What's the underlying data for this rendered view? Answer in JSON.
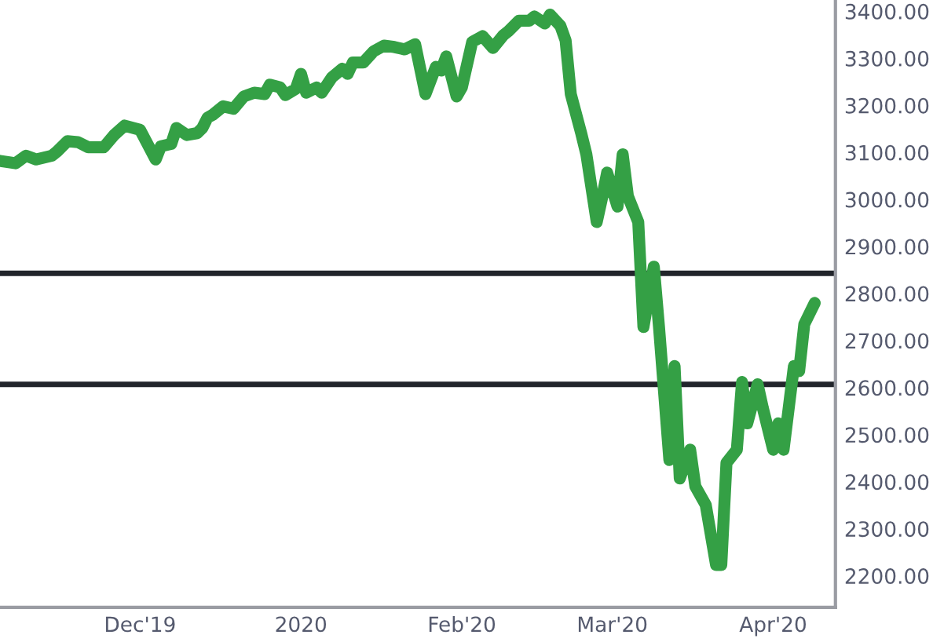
{
  "chart_data": {
    "type": "line",
    "x": [
      "2019-11-04",
      "2019-11-07",
      "2019-11-09",
      "2019-11-11",
      "2019-11-14",
      "2019-11-15",
      "2019-11-17",
      "2019-11-19",
      "2019-11-21",
      "2019-11-24",
      "2019-11-26",
      "2019-11-28",
      "2019-12-01",
      "2019-12-04",
      "2019-12-05",
      "2019-12-07",
      "2019-12-08",
      "2019-12-10",
      "2019-12-12",
      "2019-12-13",
      "2019-12-14",
      "2019-12-15",
      "2019-12-17",
      "2019-12-19",
      "2019-12-21",
      "2019-12-23",
      "2019-12-25",
      "2019-12-26",
      "2019-12-28",
      "2019-12-29",
      "2019-12-31",
      "2020-01-01",
      "2020-01-02",
      "2020-01-04",
      "2020-01-05",
      "2020-01-07",
      "2020-01-09",
      "2020-01-10",
      "2020-01-11",
      "2020-01-13",
      "2020-01-15",
      "2020-01-17",
      "2020-01-19",
      "2020-01-21",
      "2020-01-23",
      "2020-01-25",
      "2020-01-27",
      "2020-01-28",
      "2020-01-29",
      "2020-01-31",
      "2020-02-01",
      "2020-02-03",
      "2020-02-05",
      "2020-02-07",
      "2020-02-09",
      "2020-02-10",
      "2020-02-12",
      "2020-02-14",
      "2020-02-15",
      "2020-02-17",
      "2020-02-18",
      "2020-02-20",
      "2020-02-21",
      "2020-02-22",
      "2020-02-24",
      "2020-02-25",
      "2020-02-27",
      "2020-02-28",
      "2020-02-29",
      "2020-03-02",
      "2020-03-03",
      "2020-03-04",
      "2020-03-06",
      "2020-03-07",
      "2020-03-09",
      "2020-03-10",
      "2020-03-12",
      "2020-03-13",
      "2020-03-14",
      "2020-03-16",
      "2020-03-17",
      "2020-03-19",
      "2020-03-21",
      "2020-03-22",
      "2020-03-23",
      "2020-03-25",
      "2020-03-26",
      "2020-03-27",
      "2020-03-29",
      "2020-03-30",
      "2020-04-01",
      "2020-04-02",
      "2020-04-03",
      "2020-04-05",
      "2020-04-06",
      "2020-04-07",
      "2020-04-09"
    ],
    "series": [
      {
        "color": "#34a045",
        "values": [
          3082,
          3077,
          3093,
          3085,
          3093,
          3102,
          3124,
          3122,
          3111,
          3111,
          3137,
          3157,
          3148,
          3085,
          3113,
          3118,
          3152,
          3137,
          3141,
          3152,
          3174,
          3180,
          3198,
          3193,
          3219,
          3227,
          3224,
          3244,
          3238,
          3222,
          3235,
          3267,
          3227,
          3238,
          3227,
          3260,
          3278,
          3267,
          3291,
          3291,
          3315,
          3327,
          3324,
          3319,
          3330,
          3224,
          3282,
          3274,
          3304,
          3219,
          3238,
          3335,
          3347,
          3322,
          3349,
          3358,
          3380,
          3380,
          3389,
          3374,
          3393,
          3369,
          3338,
          3224,
          3141,
          3096,
          2952,
          3002,
          3057,
          2985,
          3096,
          3007,
          2952,
          2729,
          2857,
          2729,
          2446,
          2646,
          2407,
          2468,
          2390,
          2351,
          2223,
          2223,
          2440,
          2468,
          2612,
          2524,
          2607,
          2557,
          2468,
          2524,
          2468,
          2646,
          2635,
          2735,
          2780
        ]
      }
    ],
    "xlim": [
      "2019-11-04",
      "2020-04-13"
    ],
    "xticks": [
      {
        "value": "2019-12-01",
        "label": "Dec'19"
      },
      {
        "value": "2020-01-01",
        "label": "2020"
      },
      {
        "value": "2020-02-01",
        "label": "Feb'20"
      },
      {
        "value": "2020-03-01",
        "label": "Mar'20"
      },
      {
        "value": "2020-04-01",
        "label": "Apr'20"
      }
    ],
    "ylim": [
      2133,
      3424
    ],
    "yticks": [
      {
        "value": 2200,
        "label": "2200.00"
      },
      {
        "value": 2300,
        "label": "2300.00"
      },
      {
        "value": 2400,
        "label": "2400.00"
      },
      {
        "value": 2500,
        "label": "2500.00"
      },
      {
        "value": 2600,
        "label": "2600.00"
      },
      {
        "value": 2700,
        "label": "2700.00"
      },
      {
        "value": 2800,
        "label": "2800.00"
      },
      {
        "value": 2900,
        "label": "2900.00"
      },
      {
        "value": 3000,
        "label": "3000.00"
      },
      {
        "value": 3100,
        "label": "3100.00"
      },
      {
        "value": 3200,
        "label": "3200.00"
      },
      {
        "value": 3300,
        "label": "3300.00"
      },
      {
        "value": 3400,
        "label": "3400.00"
      }
    ],
    "ref_lines": [
      {
        "axis": "y",
        "value": 2843,
        "color": "#22252b",
        "line_style": "solid"
      },
      {
        "axis": "y",
        "value": 2607,
        "color": "#22252b",
        "line_style": "solid"
      }
    ],
    "grid": false,
    "legend": false,
    "marker": "none",
    "line_style": "solid"
  }
}
